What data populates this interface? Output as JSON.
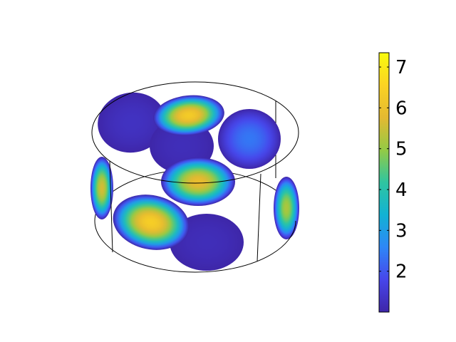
{
  "chart_data": {
    "type": "volumetric-scatter-3d",
    "title": "",
    "geometry": "cylinder",
    "colormap": "parula",
    "colormap_stops": [
      "#3e26a8",
      "#4746eb",
      "#2e87f7",
      "#12b2d4",
      "#2fc5a0",
      "#94ca45",
      "#e4b931",
      "#fbd323",
      "#f9fb0e"
    ],
    "colorbar": {
      "range": [
        1.0,
        7.35
      ],
      "ticks": [
        2,
        3,
        4,
        5,
        6,
        7
      ],
      "tick_labels": [
        "2",
        "3",
        "4",
        "5",
        "6",
        "7"
      ]
    },
    "blobs": [
      {
        "region": "top-back-center",
        "peak_value": 6.3
      },
      {
        "region": "middle-center",
        "peak_value": 5.9
      },
      {
        "region": "front-left-lower",
        "peak_value": 6.4
      },
      {
        "region": "left-wall",
        "peak_value": 5.6
      },
      {
        "region": "right-back",
        "peak_value": 2.4
      },
      {
        "region": "right-wall",
        "peak_value": 5.2
      },
      {
        "region": "top-left-back",
        "peak_value": 1.3
      },
      {
        "region": "center-back",
        "peak_value": 1.2
      },
      {
        "region": "front-right-lower",
        "peak_value": 1.2
      }
    ]
  }
}
